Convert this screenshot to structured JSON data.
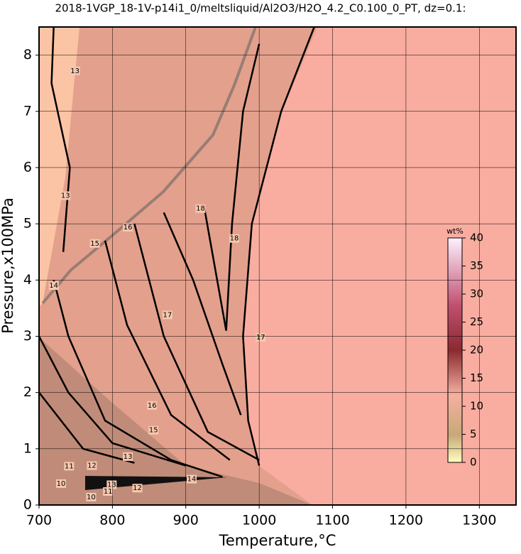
{
  "chart_data": {
    "type": "contour",
    "title": "2018-1VGP_18-1V-p14i1_0/meltsliquid/Al2O3/H2O_4.2_C0.100_0_PT, dz=0.1:",
    "xlabel": "Temperature,°C",
    "ylabel": "Pressure,x100MPa",
    "xlim": [
      700,
      1350
    ],
    "xticks": [
      700,
      800,
      900,
      1000,
      1100,
      1200,
      1300
    ],
    "ylim": [
      0,
      8.5
    ],
    "yticks": [
      0,
      1,
      2,
      3,
      4,
      5,
      6,
      7,
      8
    ],
    "grid": true,
    "contours": [
      {
        "level": 17,
        "x": [
          1000,
          985,
          978,
          990,
          1030,
          1075
        ],
        "y": [
          0.7,
          1.5,
          3,
          5,
          7,
          8.5
        ]
      },
      {
        "level": 18,
        "x": [
          925,
          955,
          963,
          978,
          1000
        ],
        "y": [
          5.3,
          3.1,
          5,
          7,
          8.2
        ]
      },
      {
        "level": 17,
        "x": [
          870,
          910,
          950,
          975
        ],
        "y": [
          5.2,
          4,
          2.5,
          1.6
        ]
      },
      {
        "level": 16,
        "x": [
          830,
          870,
          930,
          1000
        ],
        "y": [
          5,
          3,
          1.3,
          0.8
        ]
      },
      {
        "level": 15,
        "x": [
          790,
          820,
          880,
          960
        ],
        "y": [
          4.7,
          3.2,
          1.6,
          0.8
        ]
      },
      {
        "level": 14,
        "x": [
          720,
          740,
          790,
          880,
          950
        ],
        "y": [
          4,
          3,
          1.5,
          0.8,
          0.5
        ]
      },
      {
        "level": 13,
        "x": [
          700,
          740,
          800,
          900
        ],
        "y": [
          3,
          2,
          1.1,
          0.7
        ]
      },
      {
        "level": 12,
        "x": [
          700,
          760,
          830
        ],
        "y": [
          2,
          1,
          0.75
        ]
      },
      {
        "level": 13,
        "x": [
          720,
          717,
          742,
          733
        ],
        "y": [
          8.5,
          7.5,
          6,
          4.5
        ]
      }
    ],
    "contour_labels": [
      {
        "label": "13",
        "x": 749,
        "y": 7.72
      },
      {
        "label": "13",
        "x": 736,
        "y": 5.5
      },
      {
        "label": "14",
        "x": 720,
        "y": 3.9
      },
      {
        "label": "15",
        "x": 776,
        "y": 4.65
      },
      {
        "label": "16",
        "x": 821,
        "y": 4.94
      },
      {
        "label": "18",
        "x": 920,
        "y": 5.27
      },
      {
        "label": "18",
        "x": 966,
        "y": 4.74
      },
      {
        "label": "17",
        "x": 875,
        "y": 3.38
      },
      {
        "label": "17",
        "x": 1002,
        "y": 2.98
      },
      {
        "label": "16",
        "x": 854,
        "y": 1.77
      },
      {
        "label": "15",
        "x": 856,
        "y": 1.33
      },
      {
        "label": "13",
        "x": 821,
        "y": 0.86
      },
      {
        "label": "12",
        "x": 772,
        "y": 0.7
      },
      {
        "label": "11",
        "x": 741,
        "y": 0.69
      },
      {
        "label": "14",
        "x": 908,
        "y": 0.46
      },
      {
        "label": "13",
        "x": 799,
        "y": 0.36
      },
      {
        "label": "12",
        "x": 834,
        "y": 0.3
      },
      {
        "label": "11",
        "x": 794,
        "y": 0.24
      },
      {
        "label": "10",
        "x": 730,
        "y": 0.38
      },
      {
        "label": "10",
        "x": 771,
        "y": 0.14
      }
    ],
    "colorbar": {
      "label": "wt%",
      "lim": [
        0,
        40
      ],
      "ticks": [
        0,
        5,
        10,
        15,
        20,
        25,
        30,
        35,
        40
      ]
    }
  }
}
